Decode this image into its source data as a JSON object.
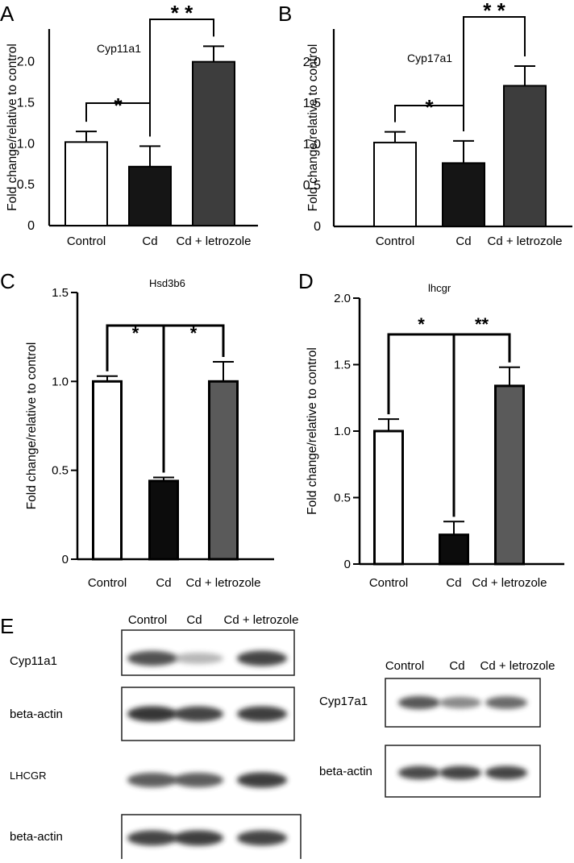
{
  "panels": [
    {
      "letter": "A",
      "chart_data": {
        "type": "bar",
        "title": "Cyp11a1",
        "xlabel": "",
        "ylabel": "Fold change/relative to control",
        "categories": [
          "Control",
          "Cd",
          "Cd + letrozole"
        ],
        "values": [
          1.02,
          0.72,
          2.0
        ],
        "errors": [
          0.13,
          0.25,
          0.19
        ],
        "ylim": [
          0,
          2.4
        ],
        "yticks": [
          "0",
          "0.5",
          "1.0",
          "1.5",
          "2.0"
        ],
        "ytick_values": [
          0,
          0.5,
          1.0,
          1.5,
          2.0
        ],
        "significance": [
          {
            "from": 0,
            "to": 1,
            "label": "*"
          },
          {
            "from": 1,
            "to": 2,
            "label": "* *"
          }
        ],
        "bar_colors": [
          "#ffffff",
          "#151515",
          "#3d3d3d"
        ],
        "grid": false
      }
    },
    {
      "letter": "B",
      "chart_data": {
        "type": "bar",
        "title": "Cyp17a1",
        "xlabel": "",
        "ylabel": "Fold change/relative to control",
        "categories": [
          "Control",
          "Cd",
          "Cd + letrozole"
        ],
        "values": [
          1.02,
          0.77,
          1.71
        ],
        "errors": [
          0.13,
          0.27,
          0.24
        ],
        "ylim": [
          0,
          2.4
        ],
        "yticks": [
          "0",
          "0.5",
          "1.0",
          "1.5",
          "2.0"
        ],
        "ytick_values": [
          0,
          0.5,
          1.0,
          1.5,
          2.0
        ],
        "significance": [
          {
            "from": 0,
            "to": 1,
            "label": "*"
          },
          {
            "from": 1,
            "to": 2,
            "label": "* *"
          }
        ],
        "bar_colors": [
          "#ffffff",
          "#151515",
          "#3d3d3d"
        ],
        "grid": false
      }
    },
    {
      "letter": "C",
      "chart_data": {
        "type": "bar",
        "title": "Hsd3b6",
        "xlabel": "",
        "ylabel": "Fold change/relative to control",
        "categories": [
          "Control",
          "Cd",
          "Cd + letrozole"
        ],
        "values": [
          1.0,
          0.44,
          1.0
        ],
        "errors": [
          0.03,
          0.02,
          0.11
        ],
        "ylim": [
          0,
          1.5
        ],
        "yticks": [
          "0",
          "0.5",
          "1.0",
          "1.5"
        ],
        "ytick_values": [
          0,
          0.5,
          1.0,
          1.5
        ],
        "significance": [
          {
            "from": 0,
            "to": 1,
            "label": "*"
          },
          {
            "from": 1,
            "to": 2,
            "label": "*"
          }
        ],
        "bar_colors": [
          "#ffffff",
          "#0c0c0c",
          "#5a5a5a"
        ],
        "grid": false
      }
    },
    {
      "letter": "D",
      "chart_data": {
        "type": "bar",
        "title": "lhcgr",
        "xlabel": "",
        "ylabel": "Fold change/relative to control",
        "categories": [
          "Control",
          "Cd",
          "Cd + letrozole"
        ],
        "values": [
          1.0,
          0.22,
          1.34
        ],
        "errors": [
          0.09,
          0.1,
          0.14
        ],
        "ylim": [
          0,
          2.0
        ],
        "yticks": [
          "0",
          "0.5",
          "1.0",
          "1.5",
          "2.0"
        ],
        "ytick_values": [
          0,
          0.5,
          1.0,
          1.5,
          2.0
        ],
        "significance": [
          {
            "from": 0,
            "to": 1,
            "label": "*"
          },
          {
            "from": 1,
            "to": 2,
            "label": "**"
          }
        ],
        "bar_colors": [
          "#ffffff",
          "#0c0c0c",
          "#5a5a5a"
        ],
        "grid": false
      }
    }
  ],
  "blots": {
    "letter": "E",
    "left_lane_labels": [
      "Control",
      "Cd",
      "Cd + letrozole"
    ],
    "right_lane_labels": [
      "Control",
      "Cd",
      "Cd + letrozole"
    ],
    "left_rows": [
      {
        "label": "Cyp11a1",
        "intensity": [
          0.85,
          0.35,
          0.9
        ]
      },
      {
        "label": "beta-actin",
        "intensity": [
          0.95,
          0.9,
          0.92
        ]
      },
      {
        "label": "LHCGR",
        "intensity": [
          0.8,
          0.8,
          0.92
        ]
      },
      {
        "label": "beta-actin",
        "intensity": [
          0.9,
          0.92,
          0.9
        ]
      }
    ],
    "right_rows": [
      {
        "label": "Cyp17a1",
        "intensity": [
          0.82,
          0.6,
          0.75
        ]
      },
      {
        "label": "beta-actin",
        "intensity": [
          0.88,
          0.9,
          0.9
        ]
      }
    ]
  }
}
